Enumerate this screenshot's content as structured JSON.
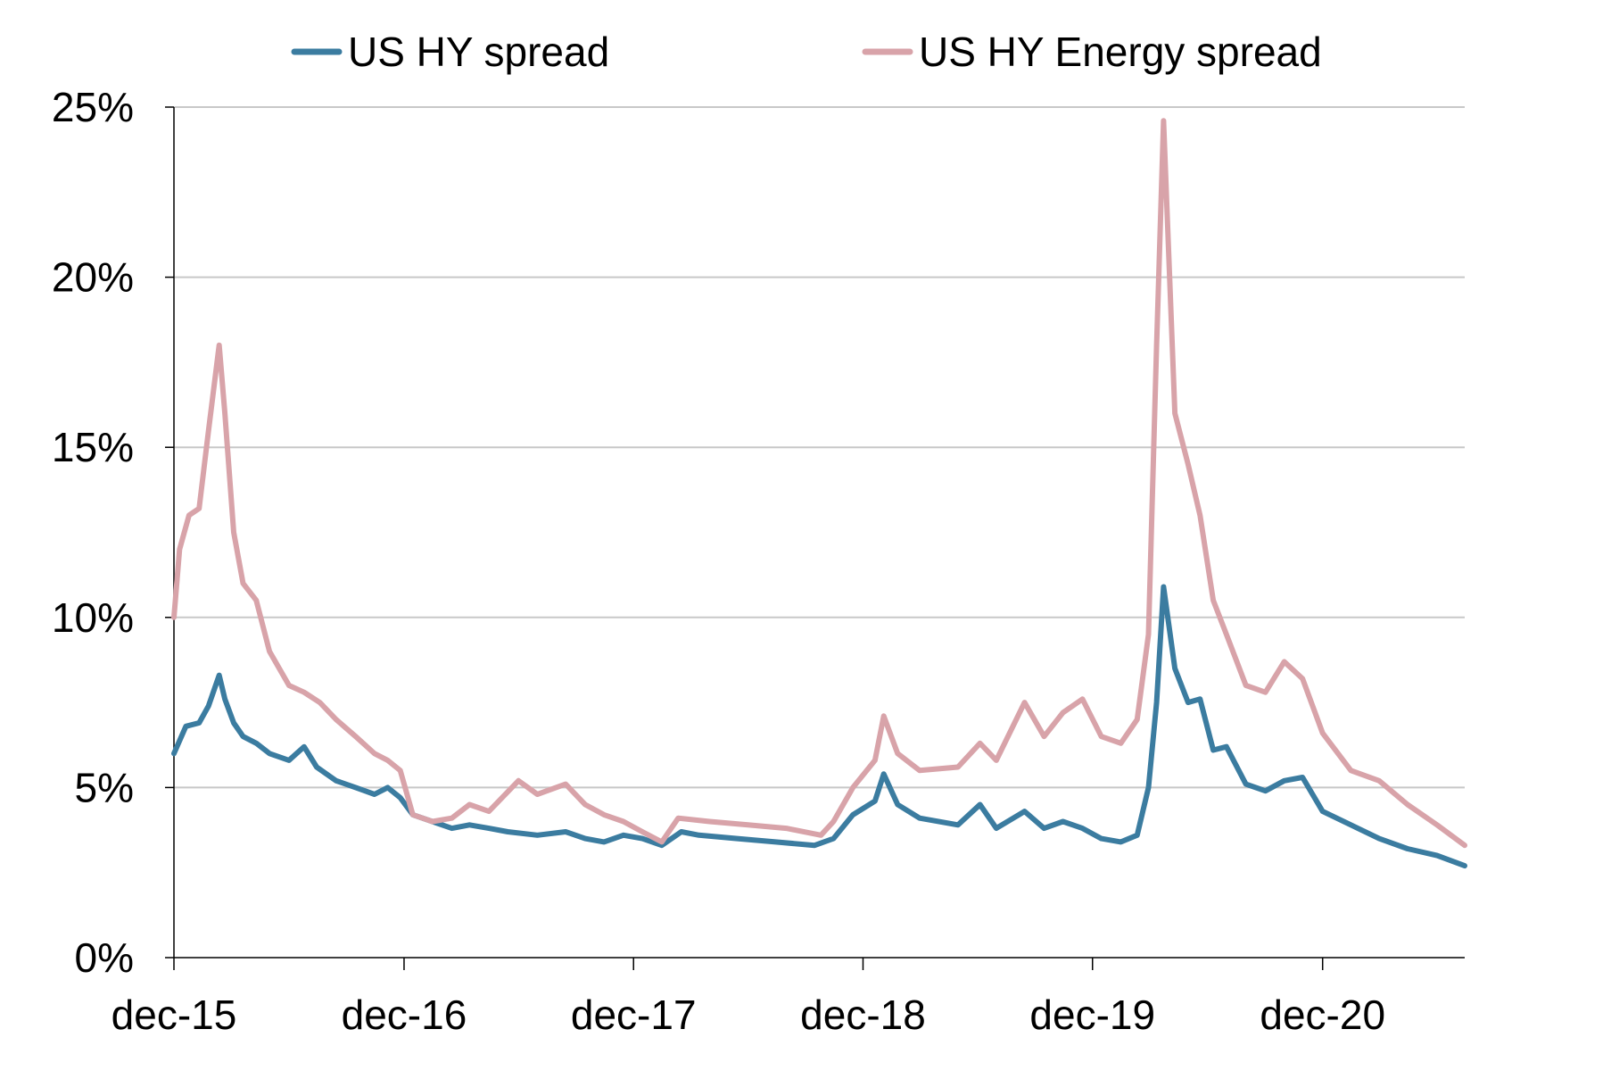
{
  "chart_data": {
    "type": "line",
    "title": "",
    "xlabel": "",
    "ylabel": "",
    "y_ticks": [
      "0%",
      "5%",
      "10%",
      "15%",
      "20%",
      "25%"
    ],
    "ylim": [
      0,
      25
    ],
    "x_ticks": [
      "dec-15",
      "dec-16",
      "dec-17",
      "dec-18",
      "dec-19",
      "dec-20"
    ],
    "x_range": [
      "2015-12-01",
      "2021-07-15"
    ],
    "grid": true,
    "legend_position": "top",
    "series": [
      {
        "name": "US HY spread",
        "color": "#3b7ca0",
        "points": [
          [
            "2015-12-01",
            6.0
          ],
          [
            "2015-12-20",
            6.8
          ],
          [
            "2016-01-10",
            6.9
          ],
          [
            "2016-01-25",
            7.4
          ],
          [
            "2016-02-11",
            8.3
          ],
          [
            "2016-02-20",
            7.6
          ],
          [
            "2016-03-05",
            6.9
          ],
          [
            "2016-03-20",
            6.5
          ],
          [
            "2016-04-10",
            6.3
          ],
          [
            "2016-05-01",
            6.0
          ],
          [
            "2016-06-01",
            5.8
          ],
          [
            "2016-06-25",
            6.2
          ],
          [
            "2016-07-15",
            5.6
          ],
          [
            "2016-08-15",
            5.2
          ],
          [
            "2016-09-15",
            5.0
          ],
          [
            "2016-10-15",
            4.8
          ],
          [
            "2016-11-05",
            5.0
          ],
          [
            "2016-11-25",
            4.7
          ],
          [
            "2016-12-15",
            4.2
          ],
          [
            "2017-01-15",
            4.0
          ],
          [
            "2017-02-15",
            3.8
          ],
          [
            "2017-03-15",
            3.9
          ],
          [
            "2017-04-15",
            3.8
          ],
          [
            "2017-05-15",
            3.7
          ],
          [
            "2017-07-01",
            3.6
          ],
          [
            "2017-08-15",
            3.7
          ],
          [
            "2017-09-15",
            3.5
          ],
          [
            "2017-10-15",
            3.4
          ],
          [
            "2017-11-15",
            3.6
          ],
          [
            "2017-12-15",
            3.5
          ],
          [
            "2018-01-15",
            3.3
          ],
          [
            "2018-02-15",
            3.7
          ],
          [
            "2018-03-15",
            3.6
          ],
          [
            "2018-05-15",
            3.5
          ],
          [
            "2018-07-15",
            3.4
          ],
          [
            "2018-09-15",
            3.3
          ],
          [
            "2018-10-15",
            3.5
          ],
          [
            "2018-11-15",
            4.2
          ],
          [
            "2018-12-20",
            4.6
          ],
          [
            "2019-01-03",
            5.4
          ],
          [
            "2019-01-25",
            4.5
          ],
          [
            "2019-03-01",
            4.1
          ],
          [
            "2019-05-01",
            3.9
          ],
          [
            "2019-06-05",
            4.5
          ],
          [
            "2019-07-01",
            3.8
          ],
          [
            "2019-08-15",
            4.3
          ],
          [
            "2019-09-15",
            3.8
          ],
          [
            "2019-10-15",
            4.0
          ],
          [
            "2019-11-15",
            3.8
          ],
          [
            "2019-12-15",
            3.5
          ],
          [
            "2020-01-15",
            3.4
          ],
          [
            "2020-02-10",
            3.6
          ],
          [
            "2020-02-28",
            5.0
          ],
          [
            "2020-03-12",
            7.5
          ],
          [
            "2020-03-23",
            10.9
          ],
          [
            "2020-04-10",
            8.5
          ],
          [
            "2020-05-01",
            7.5
          ],
          [
            "2020-05-20",
            7.6
          ],
          [
            "2020-06-10",
            6.1
          ],
          [
            "2020-07-01",
            6.2
          ],
          [
            "2020-08-01",
            5.1
          ],
          [
            "2020-09-01",
            4.9
          ],
          [
            "2020-10-01",
            5.2
          ],
          [
            "2020-10-30",
            5.3
          ],
          [
            "2020-12-01",
            4.3
          ],
          [
            "2021-01-15",
            3.9
          ],
          [
            "2021-03-01",
            3.5
          ],
          [
            "2021-04-15",
            3.2
          ],
          [
            "2021-06-01",
            3.0
          ],
          [
            "2021-07-15",
            2.7
          ]
        ]
      },
      {
        "name": "US HY Energy spread",
        "color": "#d8a3a9",
        "points": [
          [
            "2015-12-01",
            10.0
          ],
          [
            "2015-12-10",
            12.0
          ],
          [
            "2015-12-25",
            13.0
          ],
          [
            "2016-01-10",
            13.2
          ],
          [
            "2016-01-25",
            15.5
          ],
          [
            "2016-02-11",
            18.0
          ],
          [
            "2016-02-20",
            16.0
          ],
          [
            "2016-03-05",
            12.5
          ],
          [
            "2016-03-20",
            11.0
          ],
          [
            "2016-04-10",
            10.5
          ],
          [
            "2016-05-01",
            9.0
          ],
          [
            "2016-06-01",
            8.0
          ],
          [
            "2016-06-25",
            7.8
          ],
          [
            "2016-07-20",
            7.5
          ],
          [
            "2016-08-15",
            7.0
          ],
          [
            "2016-09-15",
            6.5
          ],
          [
            "2016-10-15",
            6.0
          ],
          [
            "2016-11-05",
            5.8
          ],
          [
            "2016-11-25",
            5.5
          ],
          [
            "2016-12-15",
            4.2
          ],
          [
            "2017-01-15",
            4.0
          ],
          [
            "2017-02-15",
            4.1
          ],
          [
            "2017-03-15",
            4.5
          ],
          [
            "2017-04-15",
            4.3
          ],
          [
            "2017-06-01",
            5.2
          ],
          [
            "2017-07-01",
            4.8
          ],
          [
            "2017-08-15",
            5.1
          ],
          [
            "2017-09-15",
            4.5
          ],
          [
            "2017-10-15",
            4.2
          ],
          [
            "2017-11-15",
            4.0
          ],
          [
            "2017-12-15",
            3.7
          ],
          [
            "2018-01-15",
            3.4
          ],
          [
            "2018-02-10",
            4.1
          ],
          [
            "2018-04-01",
            4.0
          ],
          [
            "2018-06-01",
            3.9
          ],
          [
            "2018-08-01",
            3.8
          ],
          [
            "2018-09-25",
            3.6
          ],
          [
            "2018-10-15",
            4.0
          ],
          [
            "2018-11-15",
            5.0
          ],
          [
            "2018-12-20",
            5.8
          ],
          [
            "2019-01-03",
            7.1
          ],
          [
            "2019-01-25",
            6.0
          ],
          [
            "2019-03-01",
            5.5
          ],
          [
            "2019-05-01",
            5.6
          ],
          [
            "2019-06-05",
            6.3
          ],
          [
            "2019-07-01",
            5.8
          ],
          [
            "2019-08-15",
            7.5
          ],
          [
            "2019-09-15",
            6.5
          ],
          [
            "2019-10-15",
            7.2
          ],
          [
            "2019-11-15",
            7.6
          ],
          [
            "2019-12-15",
            6.5
          ],
          [
            "2020-01-15",
            6.3
          ],
          [
            "2020-02-10",
            7.0
          ],
          [
            "2020-02-28",
            9.5
          ],
          [
            "2020-03-12",
            18.0
          ],
          [
            "2020-03-23",
            24.6
          ],
          [
            "2020-04-10",
            16.0
          ],
          [
            "2020-05-01",
            14.5
          ],
          [
            "2020-05-20",
            13.0
          ],
          [
            "2020-06-10",
            10.5
          ],
          [
            "2020-07-01",
            9.5
          ],
          [
            "2020-08-01",
            8.0
          ],
          [
            "2020-09-01",
            7.8
          ],
          [
            "2020-10-01",
            8.7
          ],
          [
            "2020-10-30",
            8.2
          ],
          [
            "2020-12-01",
            6.6
          ],
          [
            "2021-01-15",
            5.5
          ],
          [
            "2021-03-01",
            5.2
          ],
          [
            "2021-04-15",
            4.5
          ],
          [
            "2021-06-01",
            3.9
          ],
          [
            "2021-07-15",
            3.3
          ]
        ]
      }
    ]
  }
}
